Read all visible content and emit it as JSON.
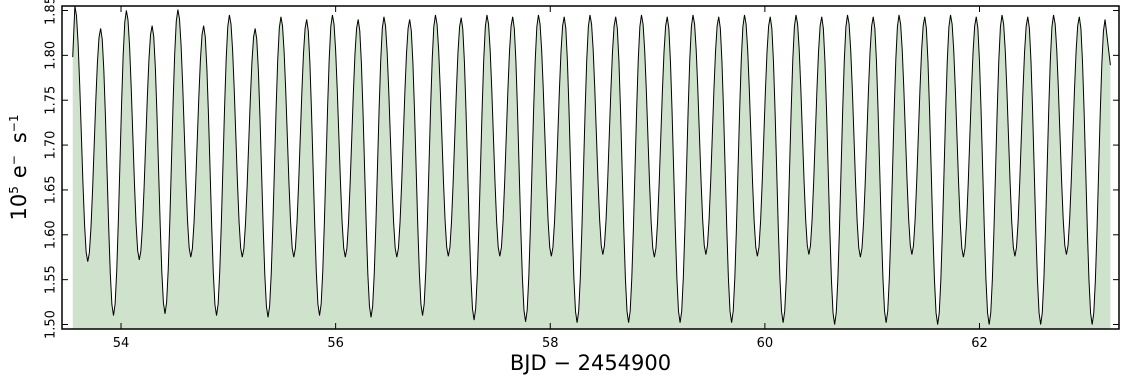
{
  "chart_data": {
    "type": "area",
    "xlabel": "BJD − 2454900",
    "ylabel": {
      "base": "10",
      "base_exp": "5",
      "unit1": "e",
      "unit1_exp": "−",
      "unit2": "s",
      "unit2_exp": "−1"
    },
    "xlim": [
      53.45,
      63.3
    ],
    "ylim": [
      1.495,
      1.855
    ],
    "xticks": [
      54,
      56,
      58,
      60,
      62
    ],
    "xtick_labels": [
      "54",
      "56",
      "58",
      "60",
      "62"
    ],
    "yticks": [
      1.5,
      1.55,
      1.6,
      1.65,
      1.7,
      1.75,
      1.8,
      1.85
    ],
    "ytick_labels": [
      "1.50",
      "1.55",
      "1.60",
      "1.65",
      "1.70",
      "1.75",
      "1.80",
      "1.85"
    ],
    "grid": false,
    "fill_color": "#cfe3cc",
    "line_color": "#000000",
    "series": [
      {
        "x_start": 53.55,
        "x_end": 63.22,
        "period": 0.2399,
        "maxima_x": [
          53.57,
          53.81,
          54.05,
          54.29,
          54.53,
          54.77,
          55.01,
          55.25,
          55.49,
          55.73,
          55.97,
          56.21,
          56.45,
          56.69,
          56.93,
          57.17,
          57.41,
          57.65,
          57.89,
          58.13,
          58.37,
          58.61,
          58.85,
          59.09,
          59.33,
          59.57,
          59.81,
          60.05,
          60.29,
          60.53,
          60.77,
          61.01,
          61.25,
          61.49,
          61.73,
          61.97,
          62.21,
          62.45,
          62.69,
          62.93,
          63.17
        ],
        "maxima": [
          1.855,
          1.83,
          1.85,
          1.833,
          1.851,
          1.833,
          1.845,
          1.83,
          1.843,
          1.84,
          1.845,
          1.84,
          1.843,
          1.84,
          1.845,
          1.842,
          1.845,
          1.843,
          1.845,
          1.843,
          1.845,
          1.843,
          1.845,
          1.843,
          1.845,
          1.843,
          1.845,
          1.843,
          1.845,
          1.843,
          1.845,
          1.843,
          1.845,
          1.843,
          1.845,
          1.843,
          1.845,
          1.843,
          1.845,
          1.843,
          1.84
        ],
        "minima_x": [
          53.69,
          53.93,
          54.17,
          54.41,
          54.65,
          54.89,
          55.13,
          55.37,
          55.61,
          55.85,
          56.09,
          56.33,
          56.57,
          56.81,
          57.05,
          57.29,
          57.53,
          57.77,
          58.01,
          58.25,
          58.49,
          58.73,
          58.97,
          59.21,
          59.45,
          59.69,
          59.93,
          60.17,
          60.41,
          60.65,
          60.89,
          61.13,
          61.37,
          61.61,
          61.85,
          62.09,
          62.33,
          62.57,
          62.81,
          63.05
        ],
        "minima": [
          1.57,
          1.51,
          1.572,
          1.512,
          1.575,
          1.51,
          1.575,
          1.508,
          1.575,
          1.51,
          1.575,
          1.508,
          1.575,
          1.51,
          1.576,
          1.505,
          1.576,
          1.503,
          1.576,
          1.502,
          1.578,
          1.502,
          1.575,
          1.502,
          1.578,
          1.502,
          1.576,
          1.502,
          1.578,
          1.5,
          1.575,
          1.502,
          1.578,
          1.5,
          1.575,
          1.5,
          1.576,
          1.5,
          1.578,
          1.5
        ]
      }
    ]
  }
}
